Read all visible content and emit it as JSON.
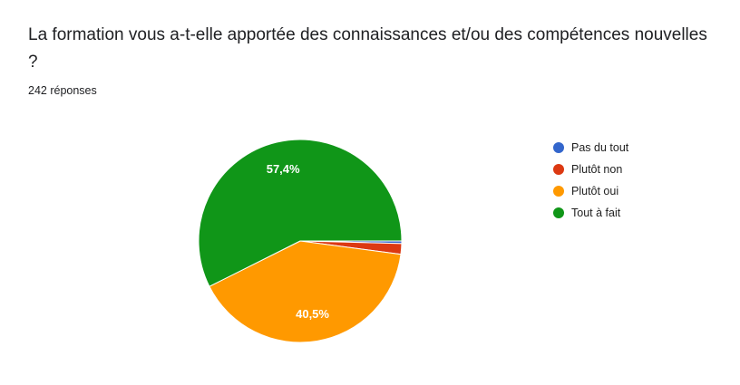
{
  "title": "La formation vous a-t-elle apportée des connaissances et/ou des compétences nouvelles ?",
  "responses": "242 réponses",
  "chart_data": {
    "type": "pie",
    "categories": [
      "Pas du tout",
      "Plutôt non",
      "Plutôt oui",
      "Tout à fait"
    ],
    "values": [
      0.4,
      1.7,
      40.5,
      57.4
    ],
    "colors": [
      "#3366cc",
      "#dc3912",
      "#ff9900",
      "#109618"
    ],
    "data_labels": [
      "",
      "",
      "40,5%",
      "57,4%"
    ],
    "legend_position": "right",
    "start_angle": "3 o'clock",
    "direction": "clockwise"
  },
  "legend": {
    "items": [
      {
        "label": "Pas du tout",
        "color": "#3366cc"
      },
      {
        "label": "Plutôt non",
        "color": "#dc3912"
      },
      {
        "label": "Plutôt oui",
        "color": "#ff9900"
      },
      {
        "label": "Tout à fait",
        "color": "#109618"
      }
    ]
  }
}
